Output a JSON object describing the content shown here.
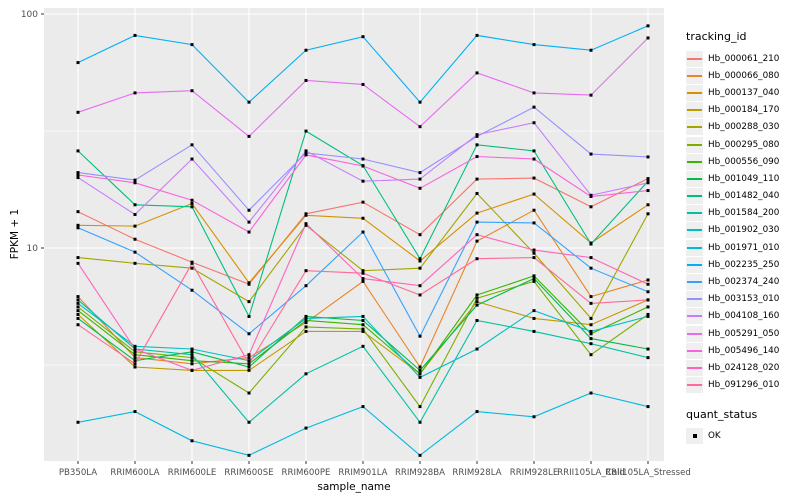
{
  "axes": {
    "x_label": "sample_name",
    "y_label": "FPKM + 1",
    "y_ticks": [
      "100",
      "10"
    ]
  },
  "legend": {
    "tracking_title": "tracking_id",
    "quant_title": "quant_status",
    "quant_items": [
      {
        "label": "OK"
      }
    ]
  },
  "colors": {
    "panel_bg": "#EBEBEB",
    "grid": "#FFFFFF",
    "point": "#000000",
    "axis_text": "#4D4D4D",
    "tick_mark": "#333333"
  },
  "chart_data": {
    "type": "line",
    "title": "",
    "xlabel": "sample_name",
    "ylabel": "FPKM + 1",
    "y_scale": "log10",
    "ylim": [
      1.2,
      105
    ],
    "y_tick_values": [
      100,
      10
    ],
    "y_minor_values": [
      31.6,
      3.16
    ],
    "grid": true,
    "legend_position": "right",
    "point_shape": "filled-square",
    "point_color": "#000000",
    "x_categories": [
      "PB350LA",
      "RRIM600LA",
      "RRIM600LE",
      "RRIM600SE",
      "RRIM600PE",
      "RRIM901LA",
      "RRIM928BA",
      "RRIM928LA",
      "RRIM928LE",
      "RRII105LA_Cold",
      "RRII105LA_Stressed"
    ],
    "series": [
      {
        "name": "Hb_000061_210",
        "color": "#F8766D",
        "values": [
          14.3,
          10.9,
          8.7,
          7.0,
          14.0,
          15.7,
          11.4,
          19.7,
          19.9,
          15.0,
          19.8
        ]
      },
      {
        "name": "Hb_000066_080",
        "color": "#E88526",
        "values": [
          6.2,
          3.4,
          3.2,
          3.4,
          4.8,
          7.2,
          3.1,
          10.7,
          14.5,
          6.2,
          7.3
        ]
      },
      {
        "name": "Hb_000137_040",
        "color": "#D89000",
        "values": [
          12.5,
          12.4,
          15.5,
          7.1,
          13.8,
          13.4,
          8.8,
          14.1,
          17.0,
          10.5,
          15.3
        ]
      },
      {
        "name": "Hb_000184_170",
        "color": "#C09B00",
        "values": [
          5.2,
          3.1,
          3.0,
          3.0,
          4.4,
          4.4,
          2.9,
          5.9,
          5.0,
          4.7,
          6.0
        ]
      },
      {
        "name": "Hb_000288_030",
        "color": "#A3A500",
        "values": [
          9.1,
          8.6,
          8.2,
          5.9,
          12.5,
          8.0,
          8.2,
          17.1,
          9.5,
          5.0,
          14.0
        ]
      },
      {
        "name": "Hb_000295_080",
        "color": "#7CAE00",
        "values": [
          5.6,
          3.6,
          3.4,
          2.4,
          4.6,
          4.5,
          2.1,
          6.1,
          7.2,
          3.5,
          5.2
        ]
      },
      {
        "name": "Hb_000556_090",
        "color": "#39B600",
        "values": [
          5.4,
          3.5,
          3.3,
          3.2,
          4.9,
          4.7,
          2.9,
          6.3,
          7.6,
          4.3,
          5.6
        ]
      },
      {
        "name": "Hb_001049_110",
        "color": "#00BB4E",
        "values": [
          5.0,
          3.3,
          3.6,
          3.1,
          5.1,
          4.9,
          3.0,
          5.7,
          7.4,
          4.1,
          3.7
        ]
      },
      {
        "name": "Hb_001482_040",
        "color": "#00BF7D",
        "values": [
          26.0,
          15.3,
          15.0,
          5.1,
          31.6,
          22.5,
          9.0,
          27.6,
          26.0,
          10.4,
          19.3
        ]
      },
      {
        "name": "Hb_001584_200",
        "color": "#00C1A3",
        "values": [
          6.0,
          3.7,
          3.5,
          1.8,
          2.9,
          3.8,
          1.8,
          4.9,
          4.4,
          3.9,
          3.4
        ]
      },
      {
        "name": "Hb_001902_030",
        "color": "#00BFC4",
        "values": [
          5.8,
          3.8,
          3.7,
          3.3,
          5.0,
          5.1,
          2.8,
          3.7,
          5.4,
          4.4,
          5.1
        ]
      },
      {
        "name": "Hb_001971_010",
        "color": "#00BAE0",
        "values": [
          1.8,
          2.0,
          1.5,
          1.3,
          1.7,
          2.1,
          1.3,
          2.0,
          1.9,
          2.4,
          2.1
        ]
      },
      {
        "name": "Hb_002235_250",
        "color": "#00B0F6",
        "values": [
          62,
          81,
          74,
          42,
          70,
          80,
          42,
          81,
          74,
          70,
          89
        ]
      },
      {
        "name": "Hb_002374_240",
        "color": "#35A2FF",
        "values": [
          12.2,
          9.6,
          6.6,
          4.3,
          6.9,
          11.7,
          4.2,
          12.9,
          12.8,
          8.2,
          6.5
        ]
      },
      {
        "name": "Hb_003153_010",
        "color": "#9590FF",
        "values": [
          21.0,
          19.5,
          27.6,
          14.5,
          25.5,
          24.0,
          21.0,
          30.0,
          40.0,
          25.2,
          24.5
        ]
      },
      {
        "name": "Hb_004108_160",
        "color": "#C77CFF",
        "values": [
          20.0,
          13.9,
          24.0,
          12.9,
          26.0,
          19.3,
          19.7,
          30.5,
          34.3,
          16.8,
          19.0
        ]
      },
      {
        "name": "Hb_005291_050",
        "color": "#E76BF3",
        "values": [
          38,
          46,
          47,
          30,
          52,
          50,
          33,
          56,
          46,
          45,
          79
        ]
      },
      {
        "name": "Hb_005496_140",
        "color": "#FA62DB",
        "values": [
          20.5,
          19.0,
          16.0,
          11.7,
          25.0,
          22.4,
          18.0,
          24.6,
          24.0,
          16.6,
          17.6
        ]
      },
      {
        "name": "Hb_024128_020",
        "color": "#FF62BC",
        "values": [
          8.6,
          3.7,
          3.0,
          3.5,
          12.7,
          7.4,
          6.9,
          11.4,
          9.8,
          9.1,
          7.0
        ]
      },
      {
        "name": "Hb_091296_010",
        "color": "#FF6A98",
        "values": [
          4.7,
          3.2,
          8.6,
          3.2,
          8.0,
          7.8,
          6.3,
          9.0,
          9.1,
          5.8,
          6.0
        ]
      }
    ]
  }
}
